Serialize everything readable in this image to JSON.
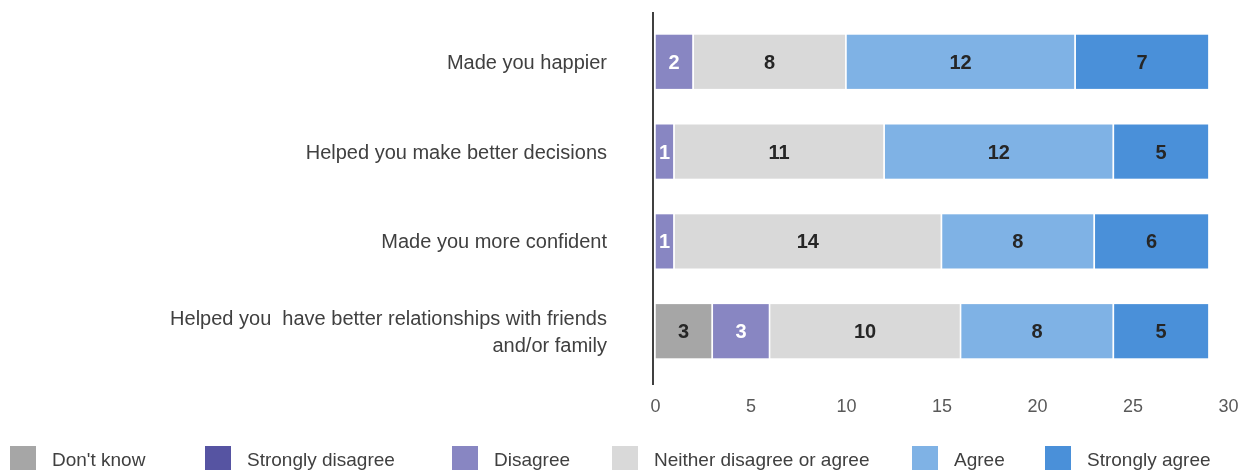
{
  "chart_data": {
    "type": "bar",
    "orientation": "horizontal",
    "stacked": true,
    "categories": [
      "Made you happier",
      "Helped you make better decisions",
      "Made you more confident",
      "Helped you  have better relationships with friends and/or family"
    ],
    "series": [
      {
        "name": "Don't know",
        "color": "#a6a6a6",
        "values": [
          null,
          null,
          null,
          3
        ]
      },
      {
        "name": "Strongly disagree",
        "color": "#5654a2",
        "values": [
          null,
          null,
          null,
          null
        ]
      },
      {
        "name": "Disagree",
        "color": "#8886c2",
        "values": [
          2,
          1,
          1,
          3
        ]
      },
      {
        "name": "Neither disagree or agree",
        "color": "#d9d9d9",
        "values": [
          8,
          11,
          14,
          10
        ]
      },
      {
        "name": "Agree",
        "color": "#7fb2e5",
        "values": [
          12,
          12,
          8,
          8
        ]
      },
      {
        "name": "Strongly agree",
        "color": "#4a90d9",
        "values": [
          7,
          5,
          6,
          5
        ]
      }
    ],
    "xlim": [
      0,
      30
    ],
    "xticks": [
      0,
      5,
      10,
      15,
      20,
      25,
      30
    ],
    "data_labels": true,
    "legend": "bottom",
    "grid": false
  }
}
